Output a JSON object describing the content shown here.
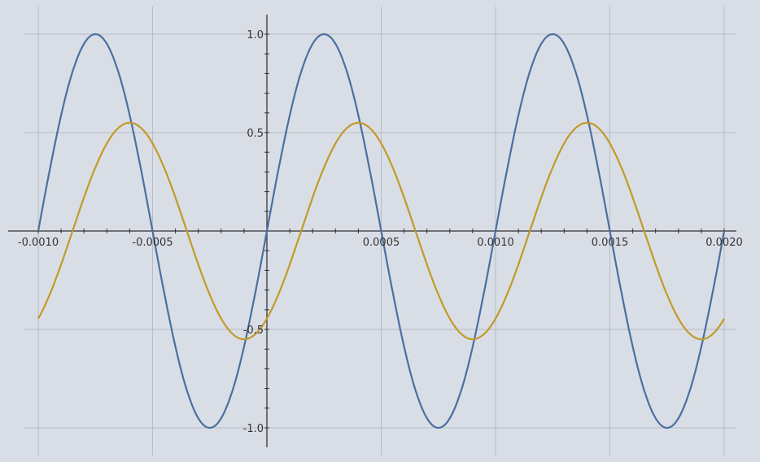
{
  "chart_data": {
    "type": "line",
    "title": "",
    "xlabel": "",
    "ylabel": "",
    "xlim": [
      -0.001,
      0.002
    ],
    "ylim": [
      -1.0,
      1.0
    ],
    "grid": true,
    "x_ticks": [
      "-0.0010",
      "-0.0005",
      "0.0005",
      "0.0010",
      "0.0015",
      "0.0020"
    ],
    "x_tick_values": [
      -0.001,
      -0.0005,
      0.0005,
      0.001,
      0.0015,
      0.002
    ],
    "y_ticks": [
      "1.0",
      "0.5",
      "-0.5",
      "-1.0"
    ],
    "y_tick_values": [
      1.0,
      0.5,
      -0.5,
      -1.0
    ],
    "series": [
      {
        "color": "#4a6fa0",
        "amplitude": 1.0,
        "frequency_hz": 1000,
        "delay": 0.0,
        "peaks_x": [
          -0.00075,
          0.00025,
          0.00125
        ],
        "troughs_x": [
          -0.00025,
          0.00075,
          0.00175
        ]
      },
      {
        "color": "#c29a2a",
        "amplitude": 0.55,
        "frequency_hz": 1000,
        "delay": 0.00015,
        "peaks_x": [
          -0.0006,
          0.0004,
          0.0014
        ],
        "troughs_x": [
          -0.0001,
          0.0009,
          0.0019
        ]
      }
    ]
  }
}
